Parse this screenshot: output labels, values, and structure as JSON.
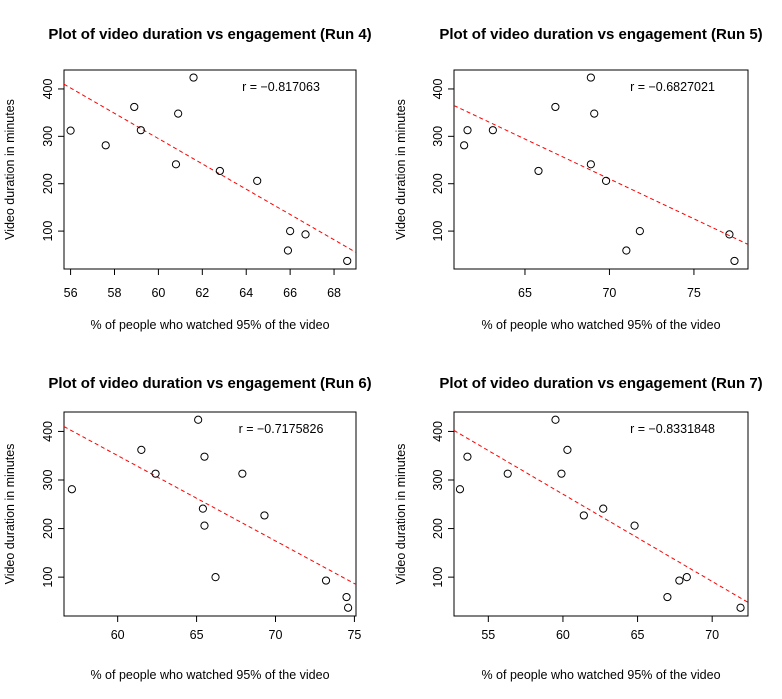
{
  "chart_data": [
    {
      "type": "scatter",
      "title": "Plot of video duration vs engagement (Run 4)",
      "xlabel": "% of people who watched 95% of the video",
      "ylabel": "Video duration in minutes",
      "annotation": "r = −0.817063",
      "xlim": [
        55.7,
        69.0
      ],
      "ylim": [
        20,
        440
      ],
      "xticks": [
        56,
        58,
        60,
        62,
        64,
        66,
        68
      ],
      "yticks": [
        100,
        200,
        300,
        400
      ],
      "points": [
        {
          "x": 56.0,
          "y": 312
        },
        {
          "x": 57.6,
          "y": 281
        },
        {
          "x": 58.9,
          "y": 362
        },
        {
          "x": 59.2,
          "y": 313
        },
        {
          "x": 60.8,
          "y": 241
        },
        {
          "x": 60.9,
          "y": 348
        },
        {
          "x": 61.6,
          "y": 424
        },
        {
          "x": 62.8,
          "y": 227
        },
        {
          "x": 64.5,
          "y": 206
        },
        {
          "x": 65.9,
          "y": 59
        },
        {
          "x": 66.0,
          "y": 100
        },
        {
          "x": 66.7,
          "y": 93
        },
        {
          "x": 68.6,
          "y": 37
        }
      ],
      "fit": {
        "x": [
          55.7,
          69.0
        ],
        "y": [
          410,
          55
        ]
      },
      "fit_color": "#ff0000",
      "point_color": "#000000"
    },
    {
      "type": "scatter",
      "title": "Plot of video duration vs engagement (Run 5)",
      "xlabel": "% of people who watched 95% of the video",
      "ylabel": "Video duration in minutes",
      "annotation": "r = −0.6827021",
      "xlim": [
        60.8,
        78.2
      ],
      "ylim": [
        20,
        440
      ],
      "xticks": [
        65,
        70,
        75
      ],
      "yticks": [
        100,
        200,
        300,
        400
      ],
      "points": [
        {
          "x": 61.4,
          "y": 281
        },
        {
          "x": 61.6,
          "y": 313
        },
        {
          "x": 63.1,
          "y": 313
        },
        {
          "x": 65.8,
          "y": 227
        },
        {
          "x": 66.8,
          "y": 362
        },
        {
          "x": 68.9,
          "y": 241
        },
        {
          "x": 68.9,
          "y": 424
        },
        {
          "x": 69.1,
          "y": 348
        },
        {
          "x": 69.8,
          "y": 206
        },
        {
          "x": 71.0,
          "y": 59
        },
        {
          "x": 71.8,
          "y": 100
        },
        {
          "x": 77.1,
          "y": 93
        },
        {
          "x": 77.4,
          "y": 37
        }
      ],
      "fit": {
        "x": [
          60.8,
          78.2
        ],
        "y": [
          365,
          72
        ]
      },
      "fit_color": "#ff0000",
      "point_color": "#000000"
    },
    {
      "type": "scatter",
      "title": "Plot of video duration vs engagement (Run 6)",
      "xlabel": "% of people who watched 95% of the video",
      "ylabel": "Video duration in minutes",
      "annotation": "r = −0.7175826",
      "xlim": [
        56.6,
        75.1
      ],
      "ylim": [
        20,
        440
      ],
      "xticks": [
        60,
        65,
        70,
        75
      ],
      "yticks": [
        100,
        200,
        300,
        400
      ],
      "points": [
        {
          "x": 57.1,
          "y": 281
        },
        {
          "x": 61.5,
          "y": 362
        },
        {
          "x": 62.4,
          "y": 313
        },
        {
          "x": 65.1,
          "y": 424
        },
        {
          "x": 65.4,
          "y": 241
        },
        {
          "x": 65.5,
          "y": 348
        },
        {
          "x": 65.5,
          "y": 206
        },
        {
          "x": 66.2,
          "y": 100
        },
        {
          "x": 67.9,
          "y": 313
        },
        {
          "x": 69.3,
          "y": 227
        },
        {
          "x": 73.2,
          "y": 93
        },
        {
          "x": 74.5,
          "y": 59
        },
        {
          "x": 74.6,
          "y": 37
        }
      ],
      "fit": {
        "x": [
          56.6,
          75.1
        ],
        "y": [
          410,
          85
        ]
      },
      "fit_color": "#ff0000",
      "point_color": "#000000"
    },
    {
      "type": "scatter",
      "title": "Plot of video duration vs engagement (Run 7)",
      "xlabel": "% of people who watched 95% of the video",
      "ylabel": "Video duration in minutes",
      "annotation": "r = −0.8331848",
      "xlim": [
        52.7,
        72.4
      ],
      "ylim": [
        20,
        440
      ],
      "xticks": [
        55,
        60,
        65,
        70
      ],
      "yticks": [
        100,
        200,
        300,
        400
      ],
      "points": [
        {
          "x": 53.1,
          "y": 281
        },
        {
          "x": 53.6,
          "y": 348
        },
        {
          "x": 56.3,
          "y": 313
        },
        {
          "x": 59.5,
          "y": 424
        },
        {
          "x": 59.9,
          "y": 313
        },
        {
          "x": 60.3,
          "y": 362
        },
        {
          "x": 61.4,
          "y": 227
        },
        {
          "x": 62.7,
          "y": 241
        },
        {
          "x": 64.8,
          "y": 206
        },
        {
          "x": 67.0,
          "y": 59
        },
        {
          "x": 67.8,
          "y": 93
        },
        {
          "x": 68.3,
          "y": 100
        },
        {
          "x": 71.9,
          "y": 37
        }
      ],
      "fit": {
        "x": [
          52.7,
          72.4
        ],
        "y": [
          402,
          48
        ]
      },
      "fit_color": "#ff0000",
      "point_color": "#000000"
    }
  ]
}
